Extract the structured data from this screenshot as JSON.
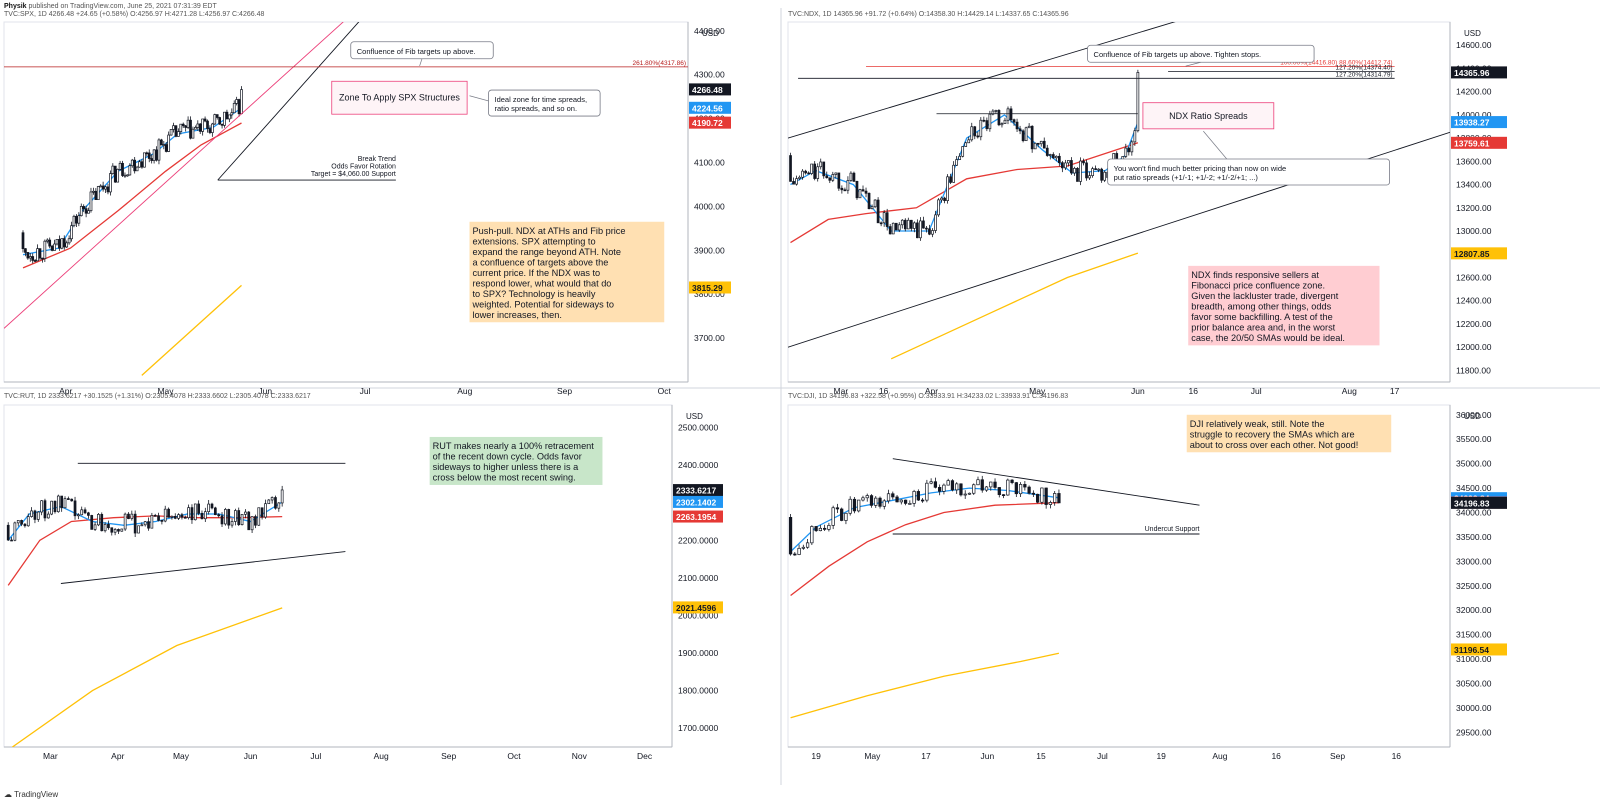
{
  "header": {
    "author": "Physik",
    "published": "published on TradingView.com, June 25, 2021 07:31:39 EDT"
  },
  "footer": {
    "brand": "TradingView"
  },
  "colors": {
    "sma20": "#2196f3",
    "sma50": "#e53935",
    "sma200": "#ffc107",
    "trendline_pink": "#ec407a",
    "line_dark": "#131722",
    "price_tag": "#131722",
    "note_orange": "#ffe0b2",
    "note_red": "#ffcdd2",
    "note_green": "#c8e6c9"
  },
  "chart_data": [
    {
      "id": "spx",
      "type": "candlestick",
      "header": "TVC:SPX, 1D  4266.48  +24.65 (+0.58%)  O:4256.97  H:4271.28  L:4256.97  C:4266.48",
      "axis_unit": "USD",
      "ylim": [
        3600,
        4420
      ],
      "y_ticks": [
        "4400.00",
        "4300.00",
        "4200.00",
        "4100.00",
        "4000.00",
        "3900.00",
        "3800.00",
        "3700.00"
      ],
      "y_tick_values": [
        4400,
        4300,
        4200,
        4100,
        4000,
        3900,
        3800,
        3700
      ],
      "x_ticks": [
        "Apr",
        "May",
        "Jun",
        "Jul",
        "Aug",
        "Sep",
        "Oct"
      ],
      "x_tick_values": [
        18,
        60,
        102,
        144,
        186,
        228,
        270
      ],
      "xlim": [
        -8,
        280
      ],
      "price_tags": [
        {
          "label": "4266.48",
          "value": 4266.48,
          "kind": "last"
        },
        {
          "label": "4224.56",
          "value": 4224.56,
          "kind": "sma20"
        },
        {
          "label": "4190.72",
          "value": 4190.72,
          "kind": "sma50"
        },
        {
          "label": "3815.29",
          "value": 3815.29,
          "kind": "sma200"
        }
      ],
      "series": {
        "close_start": 3940,
        "close_end": 4266,
        "bars": 90,
        "sma20": [
          [
            0,
            3890
          ],
          [
            15,
            3905
          ],
          [
            25,
            3990
          ],
          [
            40,
            4080
          ],
          [
            55,
            4120
          ],
          [
            65,
            4165
          ],
          [
            80,
            4180
          ],
          [
            92,
            4224
          ]
        ],
        "sma50": [
          [
            0,
            3860
          ],
          [
            20,
            3905
          ],
          [
            40,
            3990
          ],
          [
            60,
            4080
          ],
          [
            75,
            4140
          ],
          [
            92,
            4190
          ]
        ],
        "sma200": [
          [
            50,
            3615
          ],
          [
            92,
            3820
          ]
        ]
      },
      "levels": [
        {
          "label": "261.80%(4317.86)",
          "value": 4317.86,
          "x0": -8,
          "x1": 280,
          "color": "#b71c1c"
        }
      ],
      "trendlines": [
        {
          "points": [
            [
              -8,
              3722
            ],
            [
              143,
              4460
            ]
          ],
          "color": "#ec407a"
        },
        {
          "points": [
            [
              82,
              4060
            ],
            [
              143,
              4430
            ]
          ],
          "color": "#131722"
        }
      ],
      "support": {
        "x0": 82,
        "x1": 157,
        "value": 4060,
        "lines": [
          "Break Trend",
          "Odds Favor Rotation",
          "Target = $4,060.00 Support"
        ]
      },
      "zone": {
        "label": "Zone To Apply SPX Structures",
        "x0": 130,
        "x1": 187,
        "y0": 4285,
        "y1": 4210
      },
      "callouts": [
        {
          "text": [
            "Confluence of Fib targets up above."
          ],
          "x": 138,
          "y": 4375,
          "w": 60,
          "tip": [
            167,
            4320
          ]
        },
        {
          "text": [
            "Ideal zone for time spreads,",
            "ratio spreads, and so on."
          ],
          "x": 196,
          "y": 4265,
          "w": 47,
          "tip": [
            188,
            4252
          ]
        }
      ],
      "note": {
        "color": "orange",
        "x": 188,
        "y": 3965,
        "w": 82,
        "lines": [
          "Push-pull. NDX at ATHs and Fib price",
          "extensions. SPX attempting to",
          "expand the range beyond ATH. Note",
          "a confluence of targets above the",
          "current price. If the NDX was to",
          "respond lower, what would that do",
          "to SPX? Technology is heavily",
          "weighted. Potential for sideways to",
          "lower increases, then."
        ]
      }
    },
    {
      "id": "ndx",
      "type": "candlestick",
      "header": "TVC:NDX, 1D  14365.96  +91.72 (+0.64%)  O:14358.30  H:14429.14  L:14337.65  C:14365.96",
      "axis_unit": "USD",
      "ylim": [
        11700,
        14800
      ],
      "y_ticks": [
        "14600.00",
        "14400.00",
        "14200.00",
        "14000.00",
        "13800.00",
        "13600.00",
        "13400.00",
        "13200.00",
        "13000.00",
        "12800.00",
        "12600.00",
        "12400.00",
        "12200.00",
        "12000.00",
        "11800.00"
      ],
      "y_tick_values": [
        14600,
        14400,
        14200,
        14000,
        13800,
        13600,
        13400,
        13200,
        13000,
        12800,
        12600,
        12400,
        12200,
        12000,
        11800
      ],
      "x_ticks": [
        "Mar",
        "16",
        "Apr",
        "May",
        "Jun",
        "16",
        "Jul",
        "Aug",
        "17"
      ],
      "x_tick_values": [
        20,
        37,
        56,
        98,
        138,
        160,
        185,
        222,
        240
      ],
      "xlim": [
        -1,
        262
      ],
      "price_tags": [
        {
          "label": "14365.96",
          "value": 14365.96,
          "kind": "last"
        },
        {
          "label": "13938.27",
          "value": 13938.27,
          "kind": "sma20"
        },
        {
          "label": "13759.61",
          "value": 13759.61,
          "kind": "sma50"
        },
        {
          "label": "12807.85",
          "value": 12807.85,
          "kind": "sma200"
        }
      ],
      "series": {
        "close_start": 13650,
        "close_end": 14366,
        "bars": 115,
        "sma20": [
          [
            0,
            13400
          ],
          [
            10,
            13520
          ],
          [
            25,
            13400
          ],
          [
            40,
            13000
          ],
          [
            55,
            13000
          ],
          [
            70,
            13800
          ],
          [
            85,
            14000
          ],
          [
            100,
            13700
          ],
          [
            112,
            13500
          ],
          [
            125,
            13520
          ],
          [
            133,
            13650
          ],
          [
            138,
            13938
          ]
        ],
        "sma50": [
          [
            0,
            12900
          ],
          [
            15,
            13100
          ],
          [
            30,
            13150
          ],
          [
            50,
            13200
          ],
          [
            70,
            13450
          ],
          [
            90,
            13530
          ],
          [
            110,
            13560
          ],
          [
            138,
            13760
          ]
        ],
        "sma200": [
          [
            40,
            11900
          ],
          [
            80,
            12300
          ],
          [
            110,
            12600
          ],
          [
            138,
            12810
          ]
        ]
      },
      "levels": [
        {
          "label": "100.00%(14416.80)  88.60%(14412.74)",
          "value": 14416,
          "x0": 30,
          "x1": 240,
          "color": "#e53935"
        },
        {
          "label": "127.20%(14374.40)",
          "value": 14375,
          "x0": 150,
          "x1": 240,
          "color": "#131722"
        },
        {
          "label": "127.20%(14314.79)",
          "value": 14315,
          "x0": 3,
          "x1": 240,
          "color": "#131722"
        }
      ],
      "trendlines": [
        {
          "points": [
            [
              -1,
              13800
            ],
            [
              180,
              14980
            ]
          ],
          "color": "#131722"
        },
        {
          "points": [
            [
              -1,
              12000
            ],
            [
              262,
              13850
            ]
          ],
          "color": "#131722"
        }
      ],
      "support": {
        "x0": 58,
        "x1": 138,
        "value": 14010,
        "lines": []
      },
      "zone": {
        "label": "NDX Ratio Spreads",
        "x0": 140,
        "x1": 192,
        "y0": 14105,
        "y1": 13880
      },
      "callouts": [
        {
          "text": [
            "Confluence of Fib targets up above. Tighten stops."
          ],
          "x": 118,
          "y": 14600,
          "w": 90,
          "tip": [
            157,
            14420
          ]
        },
        {
          "text": [
            "You won't find much better pricing than now on wide",
            "put ratio spreads (+1/-1; +1/-2; +1/-2/+1; ...)"
          ],
          "x": 126,
          "y": 13620,
          "w": 112,
          "tip": [
            164,
            13860
          ]
        }
      ],
      "note": {
        "color": "red",
        "x": 158,
        "y": 12700,
        "w": 76,
        "lines": [
          "NDX finds responsive sellers at",
          "Fibonacci price confluence zone.",
          "Given the lackluster trade, divergent",
          "breadth, among other things, odds",
          "favor some backfilling. A test of the",
          "prior balance area and, in the worst",
          "case, the 20/50 SMAs would be ideal."
        ]
      }
    },
    {
      "id": "rut",
      "type": "candlestick",
      "header": "TVC:RUT, 1D  2333.6217  +30.1525 (+1.31%)  O:2305.4078  H:2333.6602  L:2305.4078  C:2333.6217",
      "axis_unit": "USD",
      "ylim": [
        1650,
        2560
      ],
      "y_ticks": [
        "2500.0000",
        "2400.0000",
        "2300.0000",
        "2200.0000",
        "2100.0000",
        "2000.0000",
        "1900.0000",
        "1800.0000",
        "1700.0000"
      ],
      "y_tick_values": [
        2500,
        2400,
        2300,
        2200,
        2100,
        2000,
        1900,
        1800,
        1700
      ],
      "x_ticks": [
        "Mar",
        "Apr",
        "May",
        "Jun",
        "Jul",
        "Aug",
        "Sep",
        "Oct",
        "Nov",
        "Dec"
      ],
      "x_tick_values": [
        20,
        52,
        82,
        115,
        146,
        177,
        209,
        240,
        271,
        302
      ],
      "xlim": [
        -2,
        315
      ],
      "price_tags": [
        {
          "label": "2333.6217",
          "value": 2333.62,
          "kind": "last"
        },
        {
          "label": "2302.1402",
          "value": 2302.14,
          "kind": "sma20"
        },
        {
          "label": "2263.1954",
          "value": 2263.2,
          "kind": "sma50"
        },
        {
          "label": "2021.4596",
          "value": 2021.46,
          "kind": "sma200"
        }
      ],
      "series": {
        "close_start": 2240,
        "close_end": 2334,
        "bars": 82,
        "sma20": [
          [
            0,
            2200
          ],
          [
            10,
            2270
          ],
          [
            25,
            2290
          ],
          [
            40,
            2250
          ],
          [
            55,
            2240
          ],
          [
            70,
            2250
          ],
          [
            85,
            2270
          ],
          [
            100,
            2270
          ],
          [
            115,
            2250
          ],
          [
            130,
            2302
          ]
        ],
        "sma50": [
          [
            0,
            2080
          ],
          [
            15,
            2200
          ],
          [
            30,
            2250
          ],
          [
            50,
            2260
          ],
          [
            70,
            2265
          ],
          [
            90,
            2260
          ],
          [
            110,
            2260
          ],
          [
            130,
            2263
          ]
        ],
        "sma200": [
          [
            2,
            1650
          ],
          [
            40,
            1800
          ],
          [
            80,
            1920
          ],
          [
            130,
            2020
          ]
        ]
      },
      "levels": [],
      "trendlines": [
        {
          "points": [
            [
              33,
              2405
            ],
            [
              160,
              2405
            ]
          ],
          "color": "#131722"
        },
        {
          "points": [
            [
              25,
              2085
            ],
            [
              160,
              2170
            ]
          ],
          "color": "#131722"
        }
      ],
      "support": null,
      "zone": null,
      "callouts": [],
      "note": {
        "color": "green",
        "x": 200,
        "y": 2475,
        "w": 82,
        "lines": [
          "RUT makes nearly a 100% retracement",
          "of the recent down cycle. Odds favor",
          "sideways to higher unless there is a",
          "cross below the most recent swing."
        ]
      }
    },
    {
      "id": "dji",
      "type": "candlestick",
      "header": "TVC:DJI, 1D  34196.83  +322.58 (+0.95%)  O:33933.91  H:34233.02  L:33933.91  C:34196.83",
      "axis_unit": "USD",
      "ylim": [
        29200,
        36200
      ],
      "y_ticks": [
        "36000.00",
        "35500.00",
        "35000.00",
        "34500.00",
        "34000.00",
        "33500.00",
        "33000.00",
        "32500.00",
        "32000.00",
        "31500.00",
        "31000.00",
        "30500.00",
        "30000.00",
        "29500.00"
      ],
      "y_tick_values": [
        36000,
        35500,
        35000,
        34500,
        34000,
        33500,
        33000,
        32500,
        32000,
        31500,
        31000,
        30500,
        30000,
        29500
      ],
      "x_ticks": [
        "19",
        "May",
        "17",
        "Jun",
        "15",
        "Jul",
        "19",
        "Aug",
        "16",
        "Sep",
        "16"
      ],
      "x_tick_values": [
        10,
        32,
        53,
        77,
        98,
        122,
        145,
        168,
        190,
        214,
        237
      ],
      "xlim": [
        -1,
        258
      ],
      "price_tags": [
        {
          "label": "34292.84",
          "value": 34292.84,
          "kind": "sma20"
        },
        {
          "label": "34202.37",
          "value": 34202.37,
          "kind": "sma50"
        },
        {
          "label": "34196.83",
          "value": 34196.83,
          "kind": "last"
        },
        {
          "label": "31196.54",
          "value": 31196.54,
          "kind": "sma200"
        }
      ],
      "series": {
        "close_start": 33900,
        "close_end": 34197,
        "bars": 63,
        "sma20": [
          [
            0,
            33200
          ],
          [
            10,
            33700
          ],
          [
            25,
            34100
          ],
          [
            40,
            34250
          ],
          [
            55,
            34400
          ],
          [
            70,
            34500
          ],
          [
            85,
            34450
          ],
          [
            105,
            34300
          ]
        ],
        "sma50": [
          [
            0,
            32300
          ],
          [
            15,
            32900
          ],
          [
            30,
            33400
          ],
          [
            45,
            33750
          ],
          [
            60,
            34000
          ],
          [
            80,
            34150
          ],
          [
            105,
            34200
          ]
        ],
        "sma200": [
          [
            0,
            29800
          ],
          [
            30,
            30250
          ],
          [
            60,
            30650
          ],
          [
            90,
            30950
          ],
          [
            105,
            31120
          ]
        ]
      },
      "levels": [],
      "trendlines": [
        {
          "points": [
            [
              40,
              35100
            ],
            [
              160,
              34150
            ]
          ],
          "color": "#131722"
        },
        {
          "points": [
            [
              40,
              33560
            ],
            [
              160,
              33560
            ]
          ],
          "color": "#131722"
        }
      ],
      "support": {
        "x0": 40,
        "x1": 160,
        "value": 33560,
        "lines": [
          "Undercut Support"
        ],
        "label_at_end": true
      },
      "zone": null,
      "callouts": [],
      "note": {
        "color": "orange",
        "x": 155,
        "y": 36000,
        "w": 80,
        "lines": [
          "DJI relatively weak, still. Note the",
          "struggle to recovery the SMAs which are",
          "about to cross over each other. Not good!"
        ]
      }
    }
  ]
}
